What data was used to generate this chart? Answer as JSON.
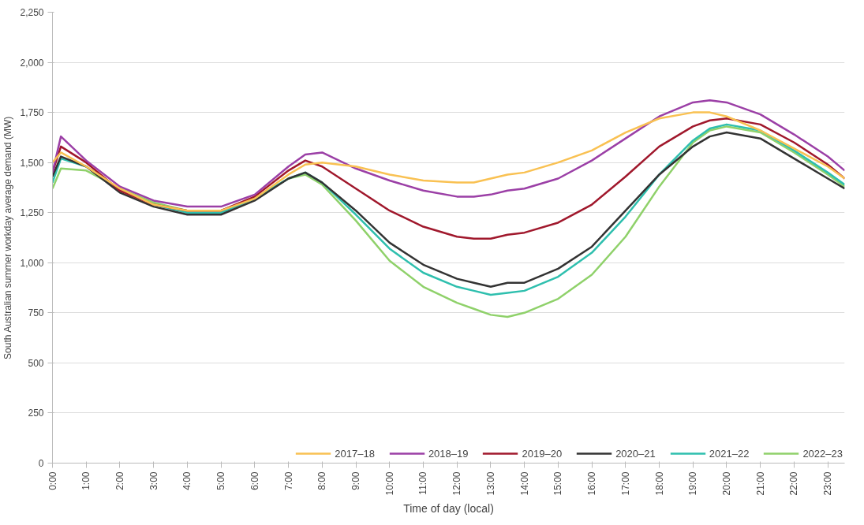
{
  "chart_data": {
    "type": "line",
    "xlabel": "Time of day (local)",
    "ylabel": "South Australian summer workday average demand (MW)",
    "x": [
      0,
      0.25,
      1,
      2,
      3,
      4,
      5,
      6,
      7,
      7.5,
      8,
      9,
      10,
      11,
      12,
      12.5,
      13,
      13.5,
      14,
      15,
      16,
      17,
      18,
      19,
      19.5,
      20,
      21,
      22,
      23,
      23.5
    ],
    "series": [
      {
        "name": "2017–18",
        "color": "#f9c152",
        "values": [
          1500,
          1550,
          1480,
          1370,
          1290,
          1260,
          1260,
          1320,
          1440,
          1490,
          1500,
          1480,
          1440,
          1410,
          1400,
          1400,
          1420,
          1440,
          1450,
          1500,
          1560,
          1650,
          1720,
          1750,
          1750,
          1730,
          1660,
          1570,
          1480,
          1420
        ]
      },
      {
        "name": "2018–19",
        "color": "#9b3fa6",
        "values": [
          1450,
          1630,
          1510,
          1380,
          1310,
          1280,
          1280,
          1340,
          1480,
          1540,
          1550,
          1470,
          1410,
          1360,
          1330,
          1330,
          1340,
          1360,
          1370,
          1420,
          1510,
          1620,
          1730,
          1800,
          1810,
          1800,
          1740,
          1640,
          1530,
          1460
        ]
      },
      {
        "name": "2019–20",
        "color": "#a0182c",
        "values": [
          1450,
          1580,
          1500,
          1360,
          1290,
          1260,
          1260,
          1330,
          1460,
          1510,
          1480,
          1370,
          1260,
          1180,
          1130,
          1120,
          1120,
          1140,
          1150,
          1200,
          1290,
          1430,
          1580,
          1680,
          1710,
          1720,
          1690,
          1600,
          1490,
          1420
        ]
      },
      {
        "name": "2020–21",
        "color": "#333333",
        "values": [
          1430,
          1530,
          1480,
          1350,
          1280,
          1240,
          1240,
          1310,
          1420,
          1450,
          1400,
          1260,
          1100,
          990,
          920,
          900,
          880,
          900,
          900,
          970,
          1080,
          1260,
          1440,
          1580,
          1630,
          1650,
          1620,
          1520,
          1420,
          1370
        ]
      },
      {
        "name": "2021–22",
        "color": "#2ebfae",
        "values": [
          1400,
          1520,
          1480,
          1360,
          1290,
          1250,
          1250,
          1320,
          1420,
          1450,
          1400,
          1240,
          1070,
          950,
          880,
          860,
          840,
          850,
          860,
          930,
          1050,
          1230,
          1440,
          1610,
          1670,
          1690,
          1660,
          1560,
          1450,
          1390
        ]
      },
      {
        "name": "2022–23",
        "color": "#8fd16a",
        "values": [
          1370,
          1470,
          1460,
          1370,
          1300,
          1260,
          1260,
          1320,
          1420,
          1440,
          1390,
          1210,
          1010,
          880,
          800,
          770,
          740,
          730,
          750,
          820,
          940,
          1130,
          1380,
          1600,
          1660,
          1680,
          1650,
          1550,
          1440,
          1380
        ]
      }
    ],
    "xlim": [
      0,
      23.5
    ],
    "xticks": [
      {
        "value": 0,
        "label": "0:00"
      },
      {
        "value": 1,
        "label": "1:00"
      },
      {
        "value": 2,
        "label": "2:00"
      },
      {
        "value": 3,
        "label": "3:00"
      },
      {
        "value": 4,
        "label": "4:00"
      },
      {
        "value": 5,
        "label": "5:00"
      },
      {
        "value": 6,
        "label": "6:00"
      },
      {
        "value": 7,
        "label": "7:00"
      },
      {
        "value": 8,
        "label": "8:00"
      },
      {
        "value": 9,
        "label": "9:00"
      },
      {
        "value": 10,
        "label": "10:00"
      },
      {
        "value": 11,
        "label": "11:00"
      },
      {
        "value": 12,
        "label": "12:00"
      },
      {
        "value": 13,
        "label": "13:00"
      },
      {
        "value": 14,
        "label": "14:00"
      },
      {
        "value": 15,
        "label": "15:00"
      },
      {
        "value": 16,
        "label": "16:00"
      },
      {
        "value": 17,
        "label": "17:00"
      },
      {
        "value": 18,
        "label": "18:00"
      },
      {
        "value": 19,
        "label": "19:00"
      },
      {
        "value": 20,
        "label": "20:00"
      },
      {
        "value": 21,
        "label": "21:00"
      },
      {
        "value": 22,
        "label": "22:00"
      },
      {
        "value": 23,
        "label": "23:00"
      }
    ],
    "ylim": [
      0,
      2250
    ],
    "yticks": [
      {
        "value": 0,
        "label": "0"
      },
      {
        "value": 250,
        "label": "250"
      },
      {
        "value": 500,
        "label": "500"
      },
      {
        "value": 750,
        "label": "750"
      },
      {
        "value": 1000,
        "label": "1,000"
      },
      {
        "value": 1250,
        "label": "1,250"
      },
      {
        "value": 1500,
        "label": "1,500"
      },
      {
        "value": 1750,
        "label": "1,750"
      },
      {
        "value": 2000,
        "label": "2,000"
      },
      {
        "value": 2250,
        "label": "2,250"
      }
    ],
    "grid": "y",
    "legend": "bottom",
    "line_style": "solid",
    "marker": "none"
  }
}
